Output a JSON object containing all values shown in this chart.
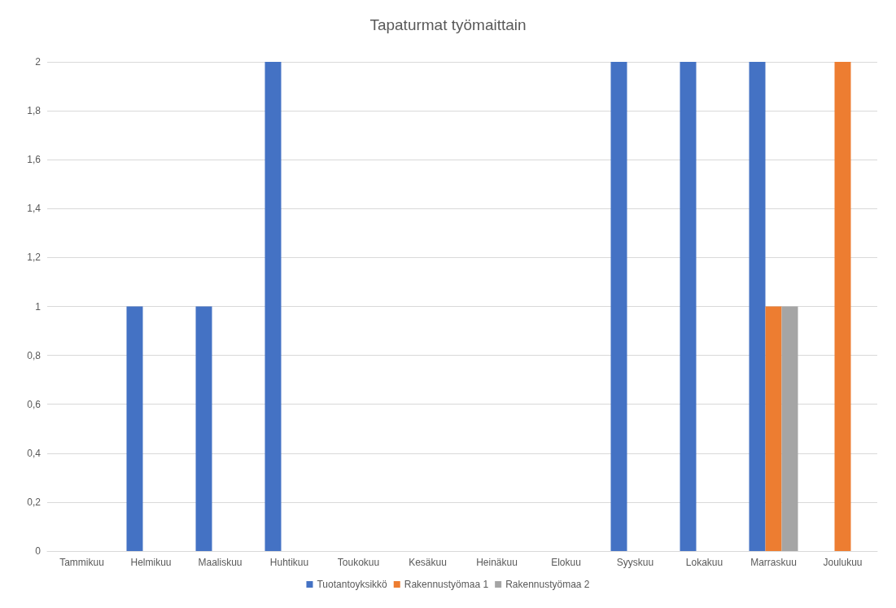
{
  "chart_data": {
    "type": "bar",
    "title": "Tapaturmat työmaittain",
    "categories": [
      "Tammikuu",
      "Helmikuu",
      "Maaliskuu",
      "Huhtikuu",
      "Toukokuu",
      "Kesäkuu",
      "Heinäkuu",
      "Elokuu",
      "Syyskuu",
      "Lokakuu",
      "Marraskuu",
      "Joulukuu"
    ],
    "series": [
      {
        "name": "Tuotantoyksikkö",
        "color": "#4472c4",
        "values": [
          null,
          1,
          1,
          2,
          null,
          null,
          null,
          null,
          2,
          2,
          2,
          null
        ]
      },
      {
        "name": "Rakennustyömaa 1",
        "color": "#ed7d31",
        "values": [
          null,
          null,
          null,
          null,
          null,
          null,
          null,
          null,
          null,
          null,
          1,
          2
        ]
      },
      {
        "name": "Rakennustyömaa 2",
        "color": "#a5a5a5",
        "values": [
          null,
          null,
          null,
          null,
          null,
          null,
          null,
          null,
          null,
          null,
          1,
          null
        ]
      }
    ],
    "ylim": [
      0,
      2
    ],
    "yticks": [
      0,
      {
        "value": 0.2,
        "label": "0,2"
      },
      {
        "value": 0.4,
        "label": "0,4"
      },
      {
        "value": 0.6,
        "label": "0,6"
      },
      {
        "value": 0.8,
        "label": "0,8"
      },
      1,
      {
        "value": 1.2,
        "label": "1,2"
      },
      {
        "value": 1.4,
        "label": "1,4"
      },
      {
        "value": 1.6,
        "label": "1,6"
      },
      {
        "value": 1.8,
        "label": "1,8"
      },
      2
    ],
    "grid": "y",
    "legend": "bottom"
  }
}
